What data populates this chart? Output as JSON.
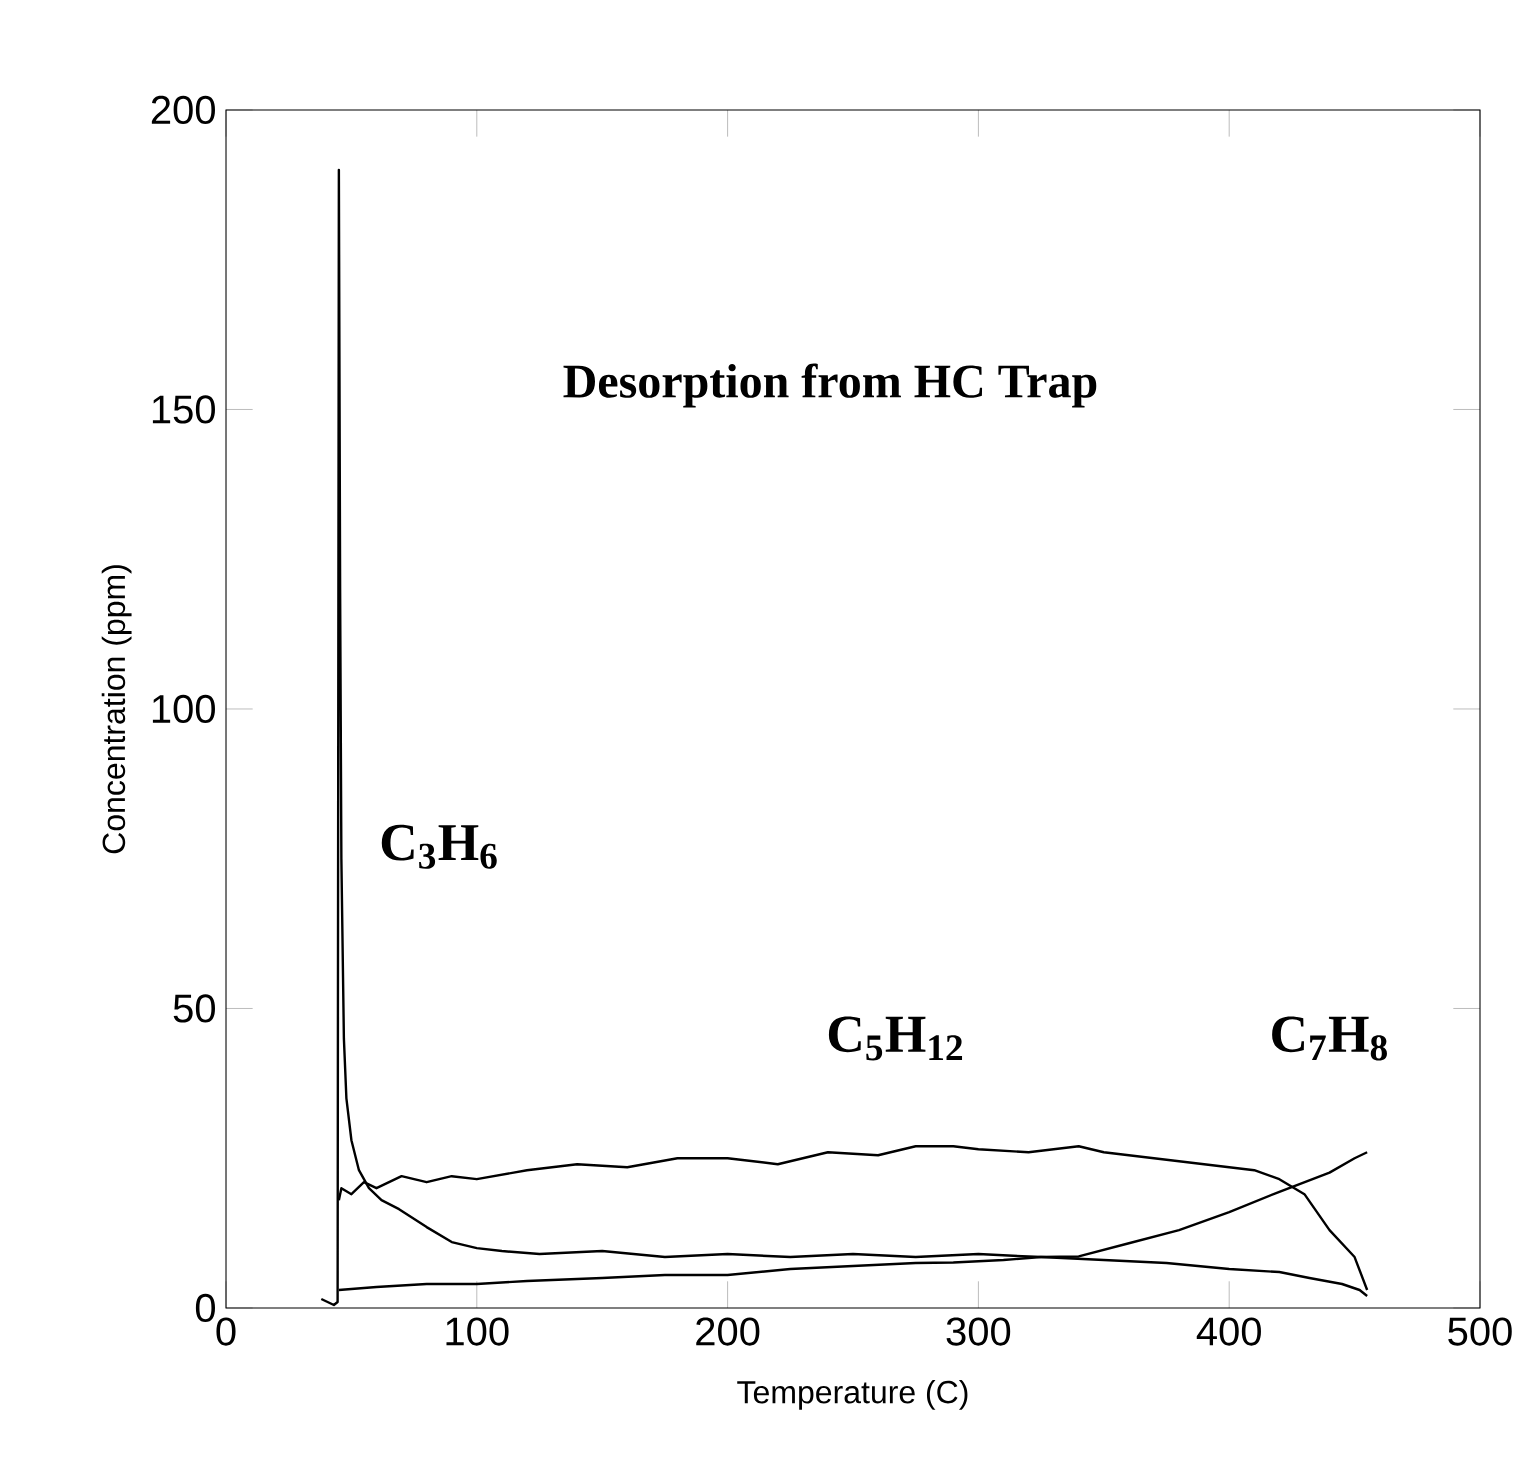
{
  "chart_data": {
    "type": "line",
    "title": "Desorption from HC Trap",
    "xlabel": "Temperature (C)",
    "ylabel": "Concentration (ppm)",
    "xlim": [
      0,
      500
    ],
    "ylim": [
      0,
      200
    ],
    "xticks": [
      0,
      100,
      200,
      300,
      400,
      500
    ],
    "yticks": [
      0,
      50,
      100,
      150,
      200
    ],
    "grid": false,
    "legend": false,
    "marker": "none",
    "line_style": "solid",
    "series": [
      {
        "name": "C$_{3}$H$_{6}$",
        "color": "#000000",
        "x": [
          38,
          43,
          44.5,
          45,
          45.5,
          46,
          47,
          48,
          50,
          53,
          57,
          62,
          69,
          80,
          90,
          100,
          110,
          125,
          150,
          175,
          200,
          225,
          250,
          275,
          300,
          325,
          350,
          375,
          400,
          420,
          432,
          445,
          452,
          455
        ],
        "values": [
          1.5,
          0.5,
          1,
          190,
          120,
          75,
          45,
          35,
          28,
          23,
          20,
          18,
          16.5,
          13.5,
          11,
          10,
          9.5,
          9,
          9.5,
          8.5,
          9,
          8.5,
          9,
          8.5,
          9,
          8.5,
          8,
          7.5,
          6.5,
          6,
          5,
          4,
          3,
          2
        ]
      },
      {
        "name": "C$_{5}$H$_{12}$",
        "color": "#000000",
        "x": [
          45,
          46,
          50,
          55,
          60,
          70,
          80,
          90,
          100,
          120,
          140,
          160,
          180,
          200,
          220,
          240,
          260,
          275,
          290,
          300,
          320,
          340,
          350,
          370,
          390,
          400,
          410,
          420,
          430,
          440,
          450,
          455
        ],
        "values": [
          18,
          20,
          19,
          21,
          20,
          22,
          21,
          22,
          21.5,
          23,
          24,
          23.5,
          25,
          25,
          24,
          26,
          25.5,
          27,
          27,
          26.5,
          26,
          27,
          26,
          25,
          24,
          23.5,
          23,
          21.5,
          19,
          13,
          8.5,
          3
        ]
      },
      {
        "name": "C$_{7}$H$_{8}$",
        "color": "#000000",
        "x": [
          45,
          60,
          80,
          100,
          120,
          150,
          175,
          200,
          225,
          250,
          275,
          290,
          310,
          325,
          340,
          360,
          380,
          400,
          420,
          440,
          450,
          455
        ],
        "values": [
          3,
          3.5,
          4,
          4,
          4.5,
          5,
          5.5,
          5.5,
          6.5,
          7,
          7.5,
          7.6,
          8,
          8.5,
          8.6,
          10.8,
          13,
          16,
          19.4,
          22.6,
          25,
          26
        ]
      }
    ]
  }
}
